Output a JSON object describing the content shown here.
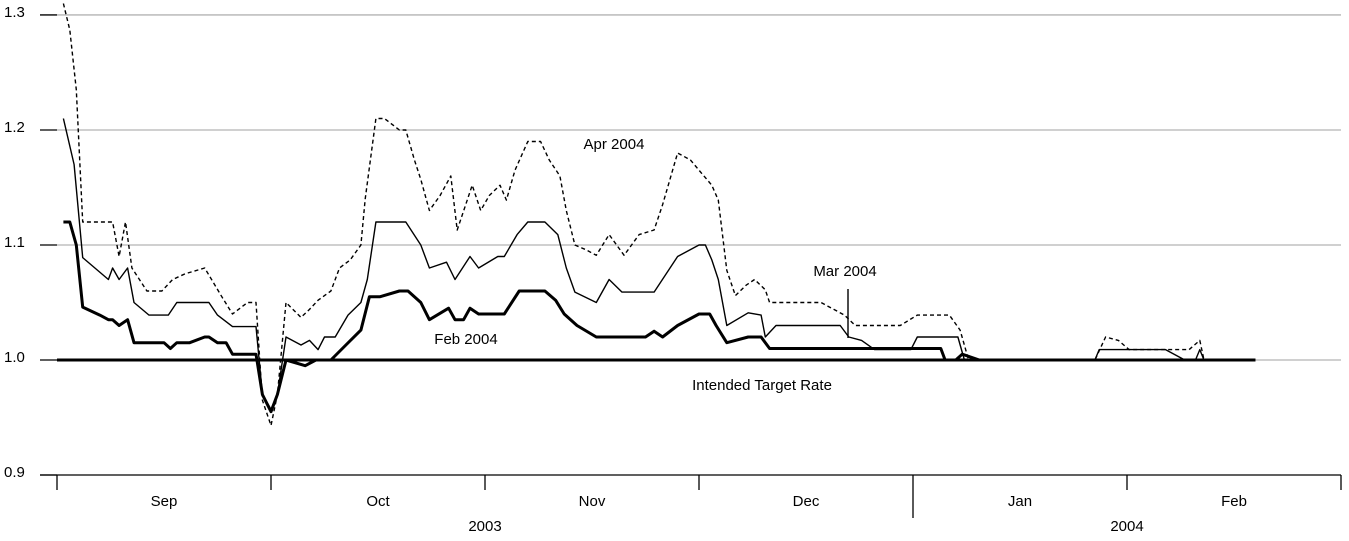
{
  "chart_data": {
    "type": "line",
    "months": [
      "Sep",
      "Oct",
      "Nov",
      "Dec",
      "Jan",
      "Feb"
    ],
    "years": [
      "2003",
      "2004"
    ],
    "xlim": [
      0,
      6
    ],
    "xticks": [
      0,
      1,
      2,
      3,
      4,
      5,
      6
    ],
    "ylim": [
      0.9,
      1.313
    ],
    "yticks": [
      0.9,
      {
        "value": 1,
        "label": "1.0"
      },
      1.1,
      1.2,
      1.3
    ],
    "grid": true,
    "series": [
      {
        "name": "Apr 2004",
        "color": "#000000",
        "line_style": "dashed",
        "weight": "thin",
        "x": [
          0.03,
          0.06,
          0.09,
          0.12,
          0.26,
          0.29,
          0.32,
          0.35,
          0.42,
          0.49,
          0.54,
          0.6,
          0.69,
          0.77,
          0.82,
          0.89,
          0.93,
          0.96,
          1.0,
          1.03,
          1.07,
          1.14,
          1.18,
          1.22,
          1.25,
          1.28,
          1.3,
          1.32,
          1.37,
          1.42,
          1.44,
          1.49,
          1.53,
          1.6,
          1.63,
          1.67,
          1.7,
          1.74,
          1.79,
          1.84,
          1.87,
          1.91,
          1.94,
          1.98,
          2.02,
          2.07,
          2.1,
          2.14,
          2.2,
          2.26,
          2.3,
          2.35,
          2.38,
          2.42,
          2.47,
          2.52,
          2.58,
          2.65,
          2.72,
          2.79,
          2.83,
          2.9,
          2.96,
          3.0,
          3.06,
          3.09,
          3.13,
          3.17,
          3.22,
          3.26,
          3.31,
          3.33,
          3.38,
          3.57,
          3.68,
          3.73,
          3.94,
          4.02,
          4.17,
          4.22,
          4.26,
          4.31,
          4.85,
          4.9,
          4.96,
          5.01,
          5.18,
          5.29,
          5.34,
          5.36,
          5.6
        ],
        "values": [
          1.31,
          1.287,
          1.235,
          1.12,
          1.12,
          1.09,
          1.12,
          1.08,
          1.06,
          1.06,
          1.07,
          1.075,
          1.08,
          1.055,
          1.04,
          1.05,
          1.05,
          0.965,
          0.943,
          0.97,
          1.05,
          1.037,
          1.044,
          1.052,
          1.056,
          1.06,
          1.07,
          1.08,
          1.087,
          1.1,
          1.14,
          1.21,
          1.21,
          1.2,
          1.2,
          1.174,
          1.157,
          1.13,
          1.143,
          1.16,
          1.113,
          1.135,
          1.152,
          1.13,
          1.143,
          1.152,
          1.139,
          1.165,
          1.19,
          1.19,
          1.174,
          1.16,
          1.13,
          1.1,
          1.096,
          1.091,
          1.109,
          1.091,
          1.109,
          1.113,
          1.135,
          1.18,
          1.174,
          1.165,
          1.152,
          1.139,
          1.078,
          1.056,
          1.065,
          1.07,
          1.061,
          1.05,
          1.05,
          1.05,
          1.039,
          1.03,
          1.03,
          1.039,
          1.039,
          1.026,
          1.0,
          1.0,
          1.0,
          1.02,
          1.017,
          1.009,
          1.009,
          1.009,
          1.017,
          1.0,
          1.0
        ]
      },
      {
        "name": "Mar 2004",
        "color": "#000000",
        "line_style": "solid",
        "weight": "thin",
        "x": [
          0.03,
          0.08,
          0.12,
          0.24,
          0.26,
          0.29,
          0.33,
          0.36,
          0.43,
          0.52,
          0.56,
          0.71,
          0.75,
          0.82,
          0.93,
          0.96,
          1.0,
          1.03,
          1.07,
          1.14,
          1.18,
          1.22,
          1.25,
          1.3,
          1.36,
          1.42,
          1.45,
          1.49,
          1.63,
          1.7,
          1.74,
          1.82,
          1.86,
          1.93,
          1.97,
          2.06,
          2.09,
          2.15,
          2.2,
          2.28,
          2.34,
          2.38,
          2.42,
          2.52,
          2.58,
          2.64,
          2.79,
          2.9,
          3.0,
          3.03,
          3.06,
          3.09,
          3.13,
          3.23,
          3.29,
          3.31,
          3.36,
          3.66,
          3.7,
          3.76,
          3.82,
          3.99,
          4.02,
          4.21,
          4.24,
          4.85,
          4.87,
          5.18,
          5.27,
          5.32,
          5.34,
          5.36,
          5.6
        ],
        "values": [
          1.21,
          1.17,
          1.089,
          1.07,
          1.08,
          1.07,
          1.08,
          1.05,
          1.039,
          1.039,
          1.05,
          1.05,
          1.039,
          1.029,
          1.029,
          0.97,
          0.957,
          0.97,
          1.02,
          1.013,
          1.017,
          1.009,
          1.02,
          1.02,
          1.039,
          1.05,
          1.07,
          1.12,
          1.12,
          1.1,
          1.08,
          1.085,
          1.07,
          1.09,
          1.08,
          1.09,
          1.09,
          1.109,
          1.12,
          1.12,
          1.109,
          1.08,
          1.059,
          1.05,
          1.07,
          1.059,
          1.059,
          1.09,
          1.1,
          1.1,
          1.087,
          1.07,
          1.03,
          1.041,
          1.039,
          1.02,
          1.03,
          1.03,
          1.02,
          1.017,
          1.009,
          1.009,
          1.02,
          1.02,
          1.0,
          1.0,
          1.009,
          1.009,
          1.0,
          1.0,
          1.009,
          1.0,
          1.0
        ]
      },
      {
        "name": "Feb 2004",
        "color": "#000000",
        "line_style": "solid",
        "weight": "thick",
        "x": [
          0.03,
          0.06,
          0.09,
          0.12,
          0.2,
          0.24,
          0.26,
          0.29,
          0.33,
          0.36,
          0.5,
          0.53,
          0.56,
          0.62,
          0.69,
          0.71,
          0.75,
          0.79,
          0.82,
          0.93,
          0.96,
          1.0,
          1.03,
          1.07,
          1.16,
          1.21,
          1.28,
          1.35,
          1.42,
          1.46,
          1.51,
          1.6,
          1.64,
          1.7,
          1.74,
          1.83,
          1.86,
          1.9,
          1.93,
          1.97,
          2.07,
          2.09,
          2.16,
          2.28,
          2.33,
          2.37,
          2.43,
          2.52,
          2.75,
          2.79,
          2.83,
          2.9,
          3.0,
          3.05,
          3.08,
          3.13,
          3.23,
          3.29,
          3.33,
          4.13,
          4.15,
          4.2,
          4.23,
          4.31,
          5.6
        ],
        "values": [
          1.12,
          1.12,
          1.1,
          1.046,
          1.039,
          1.035,
          1.035,
          1.03,
          1.035,
          1.015,
          1.015,
          1.01,
          1.015,
          1.015,
          1.02,
          1.02,
          1.015,
          1.015,
          1.005,
          1.005,
          0.97,
          0.955,
          0.97,
          1.0,
          0.995,
          1.0,
          1.0,
          1.013,
          1.026,
          1.055,
          1.055,
          1.06,
          1.06,
          1.05,
          1.035,
          1.045,
          1.035,
          1.035,
          1.045,
          1.04,
          1.04,
          1.04,
          1.06,
          1.06,
          1.052,
          1.04,
          1.03,
          1.02,
          1.02,
          1.025,
          1.02,
          1.03,
          1.04,
          1.04,
          1.03,
          1.015,
          1.02,
          1.02,
          1.01,
          1.01,
          1.0,
          1.0,
          1.005,
          1.0,
          1.0
        ]
      },
      {
        "name": "Intended Target Rate",
        "color": "#000000",
        "line_style": "solid",
        "weight": "thick",
        "x": [
          0,
          5.6
        ],
        "values": [
          1,
          1
        ]
      }
    ]
  }
}
